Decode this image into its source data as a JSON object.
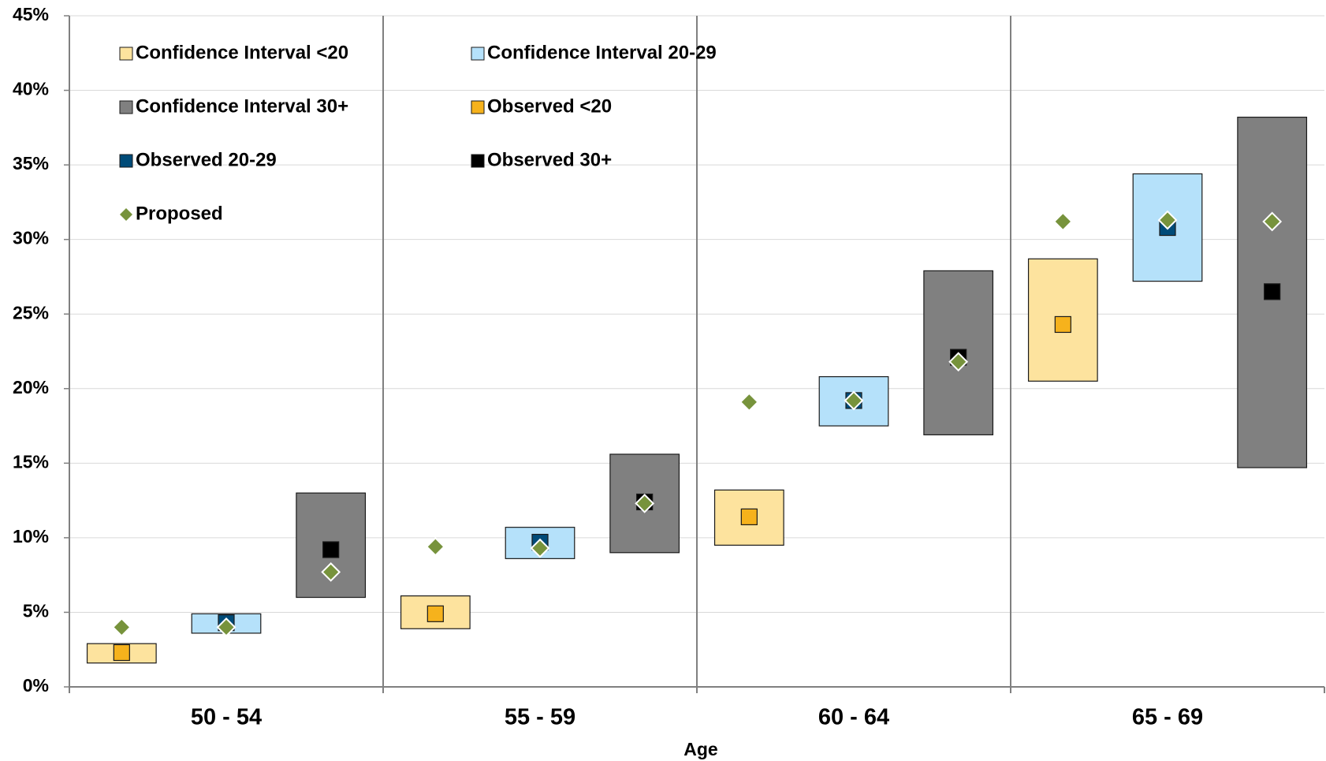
{
  "chart_data": {
    "type": "range-marker",
    "x_label": "Age",
    "categories": [
      null,
      "50 - 54",
      null,
      null,
      "55 - 59",
      null,
      null,
      "60 - 64",
      null,
      null,
      "65 - 69",
      null
    ],
    "ylim": [
      0,
      45
    ],
    "yticks": [
      {
        "value": 0,
        "label": "0%"
      },
      {
        "value": 5,
        "label": "5%"
      },
      {
        "value": 10,
        "label": "10%"
      },
      {
        "value": 15,
        "label": "15%"
      },
      {
        "value": 20,
        "label": "20%"
      },
      {
        "value": 25,
        "label": "25%"
      },
      {
        "value": 30,
        "label": "30%"
      },
      {
        "value": 35,
        "label": "35%"
      },
      {
        "value": 40,
        "label": "40%"
      },
      {
        "value": 45,
        "label": "45%"
      }
    ],
    "grid": true,
    "series": [
      {
        "name": "Confidence Interval <20",
        "marker": "box",
        "color": "#fde39e",
        "low": [
          1.6,
          null,
          null,
          3.9,
          null,
          null,
          9.5,
          null,
          null,
          20.5,
          null,
          null
        ],
        "high": [
          2.9,
          null,
          null,
          6.1,
          null,
          null,
          13.2,
          null,
          null,
          28.7,
          null,
          null
        ]
      },
      {
        "name": "Confidence Interval 20-29",
        "marker": "box",
        "color": "#b5e1fa",
        "low": [
          null,
          3.6,
          null,
          null,
          8.6,
          null,
          null,
          17.5,
          null,
          null,
          27.2,
          null
        ],
        "high": [
          null,
          4.9,
          null,
          null,
          10.7,
          null,
          null,
          20.8,
          null,
          null,
          34.4,
          null
        ]
      },
      {
        "name": "Confidence Interval 30+",
        "marker": "box",
        "color": "#808080",
        "low": [
          null,
          null,
          6.0,
          null,
          null,
          9.0,
          null,
          null,
          16.9,
          null,
          null,
          14.7
        ],
        "high": [
          null,
          null,
          13.0,
          null,
          null,
          15.6,
          null,
          null,
          27.9,
          null,
          null,
          38.2
        ]
      },
      {
        "name": "Observed <20",
        "marker": "square",
        "color": "#f6b21c",
        "values": [
          2.3,
          null,
          null,
          4.9,
          null,
          null,
          11.4,
          null,
          null,
          24.3,
          null,
          null
        ]
      },
      {
        "name": "Observed 20-29",
        "marker": "square",
        "color": "#004b78",
        "values": [
          null,
          4.3,
          null,
          null,
          9.7,
          null,
          null,
          19.2,
          null,
          null,
          30.8,
          null
        ]
      },
      {
        "name": "Observed 30+",
        "marker": "square",
        "color": "#000000",
        "values": [
          null,
          null,
          9.2,
          null,
          null,
          12.4,
          null,
          null,
          22.1,
          null,
          null,
          26.5
        ]
      },
      {
        "name": "Proposed",
        "marker": "diamond",
        "color": "#77933c",
        "values": [
          4.0,
          4.0,
          7.7,
          9.4,
          9.3,
          12.3,
          19.1,
          19.2,
          21.8,
          31.2,
          31.3,
          31.2
        ]
      }
    ]
  }
}
